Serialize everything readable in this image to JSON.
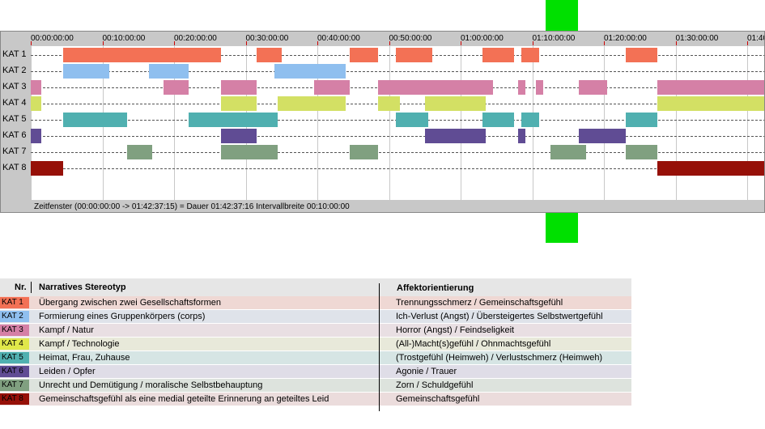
{
  "timeline": {
    "ticks": [
      "00:00:00:00",
      "00:10:00:00",
      "00:20:00:00",
      "00:30:00:00",
      "00:40:00:00",
      "00:50:00:00",
      "01:00:00:00",
      "01:10:00:00",
      "01:20:00:00",
      "01:30:00:00",
      "01:40"
    ],
    "tick_minutes": [
      0,
      10,
      20,
      30,
      40,
      50,
      60,
      70,
      80,
      90,
      100
    ],
    "total_minutes": 102.62,
    "status": "Zeitfenster (00:00:00:00 -> 01:42:37:15) = Dauer 01:42:37:16     Intervallbreite 00:10:00:00",
    "categories": [
      {
        "label": "KAT 1",
        "color": "#f37155",
        "segments": [
          [
            4.5,
            26.5
          ],
          [
            31.5,
            35
          ],
          [
            44.5,
            48.5
          ],
          [
            51,
            56
          ],
          [
            63,
            67.5
          ],
          [
            68.5,
            71
          ],
          [
            83,
            87.5
          ]
        ]
      },
      {
        "label": "KAT 2",
        "color": "#8fbfef",
        "segments": [
          [
            4.5,
            11
          ],
          [
            16.5,
            22
          ],
          [
            34,
            44
          ]
        ]
      },
      {
        "label": "KAT 3",
        "color": "#d580a6",
        "segments": [
          [
            0,
            1.5
          ],
          [
            18.5,
            22
          ],
          [
            26.5,
            31.5
          ],
          [
            39.5,
            44.5
          ],
          [
            48.5,
            64.5
          ],
          [
            68,
            69
          ],
          [
            70.5,
            71.5
          ],
          [
            76.5,
            80.5
          ],
          [
            87.5,
            102.6
          ]
        ]
      },
      {
        "label": "KAT 4",
        "color": "#d3e064",
        "segments": [
          [
            0,
            1.5
          ],
          [
            26.5,
            31.5
          ],
          [
            34.5,
            44
          ],
          [
            48.5,
            51.5
          ],
          [
            55,
            63.5
          ],
          [
            87.5,
            102.6
          ]
        ]
      },
      {
        "label": "KAT 5",
        "color": "#50b0b0",
        "segments": [
          [
            4.5,
            13.5
          ],
          [
            22,
            34.5
          ],
          [
            51,
            55.5
          ],
          [
            63,
            67.5
          ],
          [
            68.5,
            71
          ],
          [
            83,
            87.5
          ]
        ]
      },
      {
        "label": "KAT 6",
        "color": "#604c94",
        "segments": [
          [
            0,
            1.5
          ],
          [
            26.5,
            31.5
          ],
          [
            55,
            63.5
          ],
          [
            68,
            69
          ],
          [
            76.5,
            83
          ]
        ]
      },
      {
        "label": "KAT 7",
        "color": "#80a080",
        "segments": [
          [
            13.5,
            17
          ],
          [
            26.5,
            34.5
          ],
          [
            44.5,
            48.5
          ],
          [
            72.5,
            77.5
          ],
          [
            83,
            87.5
          ]
        ]
      },
      {
        "label": "KAT 8",
        "color": "#961008",
        "segments": [
          [
            0,
            4.5
          ],
          [
            87.5,
            102.6
          ]
        ]
      }
    ]
  },
  "legend": {
    "head_nr": "Nr.",
    "head_stereotype": "Narratives Stereotyp",
    "head_affekt": "Affektorientierung",
    "rows": [
      {
        "badge": "KAT 1",
        "color": "#f37155",
        "bg": "#efd8d4",
        "stereotype": "Übergang zwischen zwei Gesellschaftsformen",
        "affekt": "Trennungsschmerz / Gemeinschaftsgefühl"
      },
      {
        "badge": "KAT 2",
        "color": "#8fbfef",
        "bg": "#dfe3ea",
        "stereotype": "Formierung eines Gruppenkörpers (corps)",
        "affekt": "Ich-Verlust (Angst) / Übersteigertes Selbstwertgefühl"
      },
      {
        "badge": "KAT 3",
        "color": "#d580a6",
        "bg": "#e9dfe3",
        "stereotype": "Kampf / Natur",
        "affekt": "Horror (Angst) / Feindseligkeit"
      },
      {
        "badge": "KAT 4",
        "color": "#e0e84a",
        "bg": "#e8e9da",
        "stereotype": "Kampf / Technologie",
        "affekt": "(All-)Macht(s)gefühl / Ohnmachtsgefühl"
      },
      {
        "badge": "KAT 5",
        "color": "#50b0b0",
        "bg": "#d6e5e4",
        "stereotype": "Heimat, Frau, Zuhause",
        "affekt": "(Trostgefühl (Heimweh) / Verlustschmerz (Heimweh)"
      },
      {
        "badge": "KAT 6",
        "color": "#604c94",
        "bg": "#dfdde7",
        "stereotype": "Leiden / Opfer",
        "affekt": "Agonie / Trauer"
      },
      {
        "badge": "KAT 7",
        "color": "#80a080",
        "bg": "#dde3dd",
        "stereotype": "Unrecht und Demütigung / moralische Selbstbehauptung",
        "affekt": "Zorn / Schuldgefühl"
      },
      {
        "badge": "KAT 8",
        "color": "#961008",
        "bg": "#ebdcdc",
        "stereotype": "Gemeinschaftsgefühl als eine medial geteilte Erinnerung an geteiltes Leid",
        "affekt": "Gemeinschaftsgefühl"
      }
    ]
  }
}
